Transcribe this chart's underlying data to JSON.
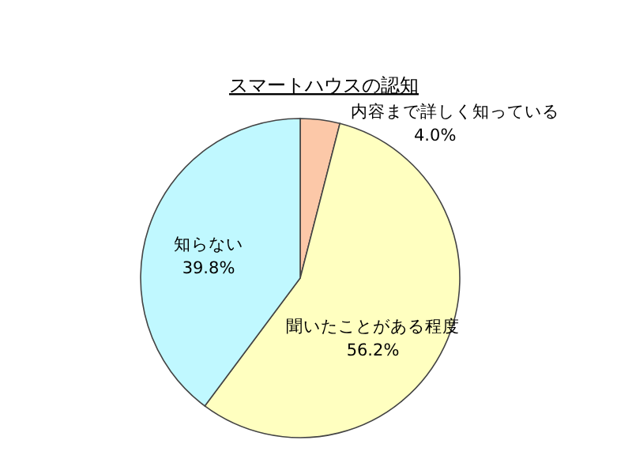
{
  "chart_data": {
    "type": "pie",
    "title": "スマートハウスの認知",
    "categories": [
      "内容まで詳しく知っている",
      "聞いたことがある程度",
      "知らない"
    ],
    "values": [
      4.0,
      56.2,
      39.8
    ],
    "value_labels": [
      "4.0%",
      "56.2%",
      "39.8%"
    ],
    "colors": [
      "#fcc8a8",
      "#ffffc0",
      "#c0f8ff"
    ]
  }
}
